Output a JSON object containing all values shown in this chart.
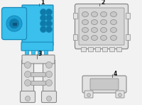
{
  "bg_color": "#f2f2f2",
  "blue_fill": "#3bbfed",
  "blue_mid": "#1a9fd4",
  "blue_dark": "#0d7aaa",
  "blue_edge": "#1a8ab8",
  "gray_fill": "#e2e2e2",
  "gray_mid": "#c8c8c8",
  "gray_dark": "#aaaaaa",
  "gray_edge": "#888888",
  "line_color": "#555555",
  "label_color": "#111111",
  "white": "#ffffff",
  "figsize": [
    2.0,
    1.47
  ],
  "dpi": 100
}
